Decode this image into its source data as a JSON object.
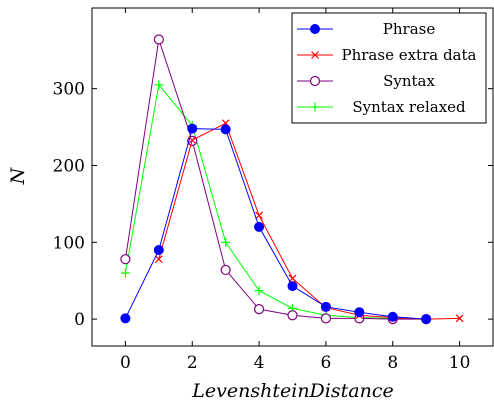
{
  "chart_data": {
    "type": "line",
    "xlabel": "LevenshteinDistance",
    "ylabel": "N",
    "xlim": [
      -1,
      11
    ],
    "ylim": [
      -35,
      405
    ],
    "xticks": [
      0,
      2,
      4,
      6,
      8,
      10
    ],
    "yticks": [
      0,
      100,
      200,
      300
    ],
    "grid": false,
    "legend_position": "top-right",
    "series": [
      {
        "name": "Phrase",
        "color": "#0000ff",
        "marker": "filled-circle",
        "x": [
          0,
          1,
          2,
          3,
          4,
          5,
          6,
          7,
          8,
          9
        ],
        "y": [
          1,
          90,
          248,
          247,
          120,
          43,
          16,
          9,
          3,
          0
        ]
      },
      {
        "name": "Phrase extra data",
        "color": "#ff0000",
        "marker": "x",
        "x": [
          1,
          2,
          3,
          4,
          5,
          6,
          7,
          8,
          9,
          10
        ],
        "y": [
          78,
          233,
          255,
          135,
          53,
          15,
          5,
          2,
          0,
          1
        ]
      },
      {
        "name": "Syntax",
        "color": "#800080",
        "marker": "open-circle",
        "x": [
          0,
          1,
          2,
          3,
          4,
          5,
          6,
          7,
          8,
          9
        ],
        "y": [
          78,
          364,
          232,
          64,
          13,
          5,
          1,
          1,
          0,
          0
        ]
      },
      {
        "name": "Syntax relaxed",
        "color": "#00ff00",
        "marker": "plus",
        "x": [
          0,
          1,
          2,
          3,
          4,
          5,
          6,
          7,
          8,
          9
        ],
        "y": [
          60,
          305,
          252,
          100,
          37,
          14,
          5,
          2,
          1,
          0
        ]
      }
    ]
  }
}
